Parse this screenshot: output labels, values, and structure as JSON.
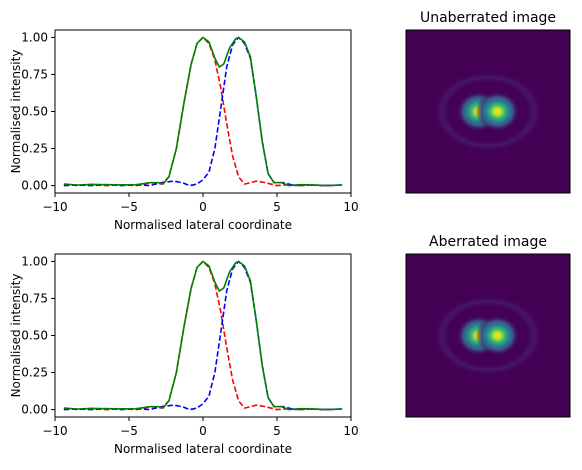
{
  "chart_data": [
    {
      "type": "line",
      "title": "",
      "xlabel": "Normalised lateral coordinate",
      "ylabel": "Normalised intensity",
      "xlim": [
        -10,
        10
      ],
      "ylim": [
        -0.05,
        1.05
      ],
      "xticks": [
        -10,
        -5,
        0,
        5,
        10
      ],
      "yticks": [
        0.0,
        0.25,
        0.5,
        0.75,
        1.0
      ],
      "xtick_labels": [
        "−10",
        "−5",
        "0",
        "5",
        "10"
      ],
      "ytick_labels": [
        "0.00",
        "0.25",
        "0.50",
        "0.75",
        "1.00"
      ],
      "grid": false,
      "series": [
        {
          "color": "#ff0000",
          "dash": "dashed",
          "x": [
            -9.4,
            -8.5,
            -7.5,
            -6.5,
            -5.5,
            -4.5,
            -3.5,
            -2.8,
            -2.3,
            -1.8,
            -1.3,
            -0.8,
            -0.4,
            0,
            0.4,
            0.8,
            1.2,
            1.6,
            2.0,
            2.4,
            2.8,
            3.2,
            3.6,
            4.2,
            5.0,
            5.8,
            6.6,
            7.5,
            8.5,
            9.4
          ],
          "y": [
            0.01,
            0.0,
            0.008,
            0.0,
            0.005,
            0.0,
            0.02,
            0.01,
            0.06,
            0.25,
            0.55,
            0.82,
            0.96,
            1.0,
            0.96,
            0.85,
            0.66,
            0.42,
            0.2,
            0.06,
            0.01,
            0.02,
            0.03,
            0.02,
            0.0,
            0.006,
            0.0,
            0.004,
            0.0,
            0.004
          ]
        },
        {
          "color": "#0000ff",
          "dash": "dashed",
          "x": [
            -9.4,
            -8.5,
            -7.5,
            -6.5,
            -5.5,
            -4.5,
            -3.6,
            -2.8,
            -2.0,
            -1.4,
            -0.9,
            -0.4,
            0,
            0.4,
            0.8,
            1.2,
            1.6,
            2.0,
            2.4,
            2.8,
            3.2,
            3.6,
            4.0,
            4.4,
            4.8,
            5.4,
            6.2,
            7.0,
            8.0,
            9.4
          ],
          "y": [
            0.0,
            0.004,
            0.0,
            0.006,
            0.0,
            0.006,
            0.0,
            0.02,
            0.03,
            0.02,
            0.0,
            0.01,
            0.04,
            0.09,
            0.25,
            0.52,
            0.8,
            0.95,
            1.0,
            0.96,
            0.86,
            0.6,
            0.3,
            0.08,
            0.02,
            0.02,
            0.0,
            0.006,
            0.0,
            0.004
          ]
        },
        {
          "color": "#008000",
          "dash": "solid",
          "x": [
            -9.4,
            -8.5,
            -7.5,
            -6.5,
            -5.5,
            -4.5,
            -3.6,
            -3.0,
            -2.7,
            -2.3,
            -1.8,
            -1.3,
            -0.8,
            -0.4,
            0,
            0.4,
            0.8,
            1.1,
            1.4,
            1.8,
            2.2,
            2.4,
            2.8,
            3.2,
            3.6,
            4.0,
            4.4,
            4.8,
            5.3,
            5.8,
            6.6,
            7.5,
            8.5,
            9.4
          ],
          "y": [
            0.01,
            0.004,
            0.008,
            0.006,
            0.005,
            0.006,
            0.02,
            0.02,
            0.01,
            0.06,
            0.25,
            0.55,
            0.82,
            0.96,
            1.0,
            0.97,
            0.86,
            0.8,
            0.82,
            0.93,
            0.99,
            1.0,
            0.97,
            0.87,
            0.6,
            0.3,
            0.08,
            0.02,
            0.02,
            0.0,
            0.006,
            0.004,
            0.0,
            0.004
          ]
        }
      ]
    },
    {
      "type": "heatmap",
      "title": "Unaberrated image",
      "xlabel": "",
      "ylabel": "",
      "xticks": [],
      "yticks": [],
      "colormap": "viridis",
      "background": "#440154",
      "spots": [
        {
          "x": -0.25,
          "y": 0,
          "peak": 1.0
        },
        {
          "x": 0.25,
          "y": 0,
          "peak": 1.0
        }
      ]
    },
    {
      "type": "line",
      "title": "",
      "xlabel": "Normalised lateral coordinate",
      "ylabel": "Normalised intensity",
      "xlim": [
        -10,
        10
      ],
      "ylim": [
        -0.05,
        1.05
      ],
      "xticks": [
        -10,
        -5,
        0,
        5,
        10
      ],
      "yticks": [
        0.0,
        0.25,
        0.5,
        0.75,
        1.0
      ],
      "xtick_labels": [
        "−10",
        "−5",
        "0",
        "5",
        "10"
      ],
      "ytick_labels": [
        "0.00",
        "0.25",
        "0.50",
        "0.75",
        "1.00"
      ],
      "grid": false,
      "series": [
        {
          "color": "#ff0000",
          "dash": "dashed",
          "x": [
            -9.4,
            -8.5,
            -7.5,
            -6.5,
            -5.5,
            -4.5,
            -3.5,
            -2.8,
            -2.3,
            -1.8,
            -1.3,
            -0.8,
            -0.4,
            0,
            0.4,
            0.8,
            1.2,
            1.6,
            2.0,
            2.4,
            2.8,
            3.2,
            3.6,
            4.2,
            5.0,
            5.8,
            6.6,
            7.5,
            8.5,
            9.4
          ],
          "y": [
            0.01,
            0.0,
            0.008,
            0.0,
            0.005,
            0.0,
            0.02,
            0.01,
            0.06,
            0.25,
            0.55,
            0.82,
            0.96,
            1.0,
            0.96,
            0.85,
            0.66,
            0.42,
            0.2,
            0.06,
            0.01,
            0.02,
            0.03,
            0.02,
            0.0,
            0.006,
            0.0,
            0.004,
            0.0,
            0.004
          ]
        },
        {
          "color": "#0000ff",
          "dash": "dashed",
          "x": [
            -9.4,
            -8.5,
            -7.5,
            -6.5,
            -5.5,
            -4.5,
            -3.6,
            -2.8,
            -2.0,
            -1.4,
            -0.9,
            -0.4,
            0,
            0.4,
            0.8,
            1.2,
            1.6,
            2.0,
            2.4,
            2.8,
            3.2,
            3.6,
            4.0,
            4.4,
            4.8,
            5.4,
            6.2,
            7.0,
            8.0,
            9.4
          ],
          "y": [
            0.0,
            0.004,
            0.0,
            0.006,
            0.0,
            0.006,
            0.0,
            0.02,
            0.03,
            0.02,
            0.0,
            0.01,
            0.04,
            0.09,
            0.25,
            0.52,
            0.8,
            0.95,
            1.0,
            0.96,
            0.86,
            0.6,
            0.3,
            0.08,
            0.02,
            0.02,
            0.0,
            0.006,
            0.0,
            0.004
          ]
        },
        {
          "color": "#008000",
          "dash": "solid",
          "x": [
            -9.4,
            -8.5,
            -7.5,
            -6.5,
            -5.5,
            -4.5,
            -3.6,
            -3.0,
            -2.7,
            -2.3,
            -1.8,
            -1.3,
            -0.8,
            -0.4,
            0,
            0.4,
            0.8,
            1.1,
            1.4,
            1.8,
            2.2,
            2.4,
            2.8,
            3.2,
            3.6,
            4.0,
            4.4,
            4.8,
            5.3,
            5.8,
            6.6,
            7.5,
            8.5,
            9.4
          ],
          "y": [
            0.01,
            0.004,
            0.008,
            0.006,
            0.005,
            0.006,
            0.02,
            0.02,
            0.01,
            0.06,
            0.25,
            0.55,
            0.82,
            0.96,
            1.0,
            0.97,
            0.86,
            0.8,
            0.82,
            0.93,
            0.99,
            1.0,
            0.97,
            0.87,
            0.6,
            0.3,
            0.08,
            0.02,
            0.02,
            0.0,
            0.006,
            0.004,
            0.0,
            0.004
          ]
        }
      ]
    },
    {
      "type": "heatmap",
      "title": "Aberrated image",
      "xlabel": "",
      "ylabel": "",
      "xticks": [],
      "yticks": [],
      "colormap": "viridis",
      "background": "#440154",
      "spots": [
        {
          "x": -0.25,
          "y": 0,
          "peak": 1.0
        },
        {
          "x": 0.25,
          "y": 0,
          "peak": 1.0
        }
      ]
    }
  ]
}
